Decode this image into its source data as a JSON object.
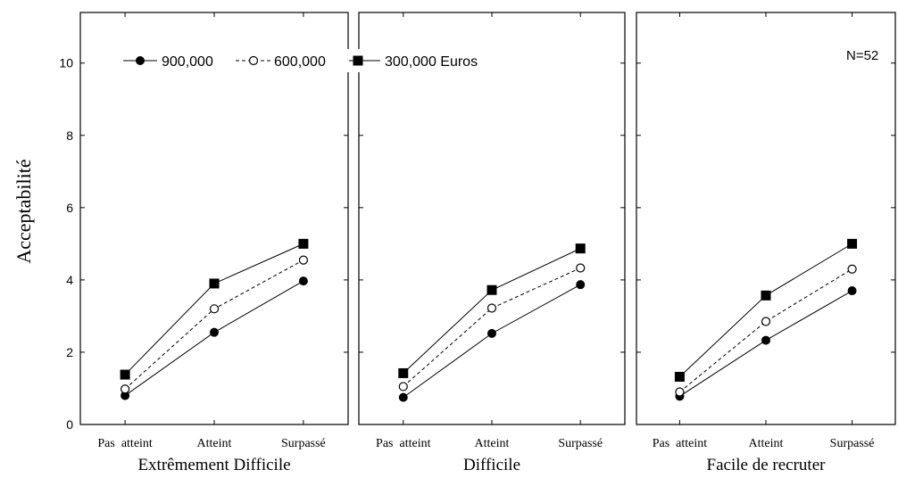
{
  "chart_data": {
    "type": "line",
    "ylabel": "Acceptabilité",
    "ylim": [
      0,
      11.4
    ],
    "yticks": [
      0,
      2,
      4,
      6,
      8,
      10
    ],
    "annotation": "N=52",
    "categories": [
      "Pas  atteint",
      "Atteint",
      "Surpassé"
    ],
    "legend": {
      "placement": "top",
      "entries": [
        "900,000",
        "600,000",
        "300,000 Euros"
      ]
    },
    "series_styles": [
      {
        "marker": "filled-circle",
        "dash": "solid",
        "color": "#000000"
      },
      {
        "marker": "open-circle",
        "dash": "dashed",
        "color": "#000000"
      },
      {
        "marker": "filled-square",
        "dash": "solid",
        "color": "#000000"
      }
    ],
    "panels": [
      {
        "title": "Extrêmement Difficile",
        "series": [
          {
            "values": [
              0.8,
              2.55,
              3.97
            ]
          },
          {
            "values": [
              0.98,
              3.2,
              4.55
            ]
          },
          {
            "values": [
              1.38,
              3.9,
              5.0
            ]
          }
        ]
      },
      {
        "title": "Difficile",
        "series": [
          {
            "values": [
              0.75,
              2.52,
              3.87
            ]
          },
          {
            "values": [
              1.05,
              3.22,
              4.33
            ]
          },
          {
            "values": [
              1.42,
              3.72,
              4.87
            ]
          }
        ]
      },
      {
        "title": "Facile de recruter",
        "series": [
          {
            "values": [
              0.78,
              2.33,
              3.7
            ]
          },
          {
            "values": [
              0.9,
              2.85,
              4.3
            ]
          },
          {
            "values": [
              1.32,
              3.57,
              5.0
            ]
          }
        ]
      }
    ]
  }
}
